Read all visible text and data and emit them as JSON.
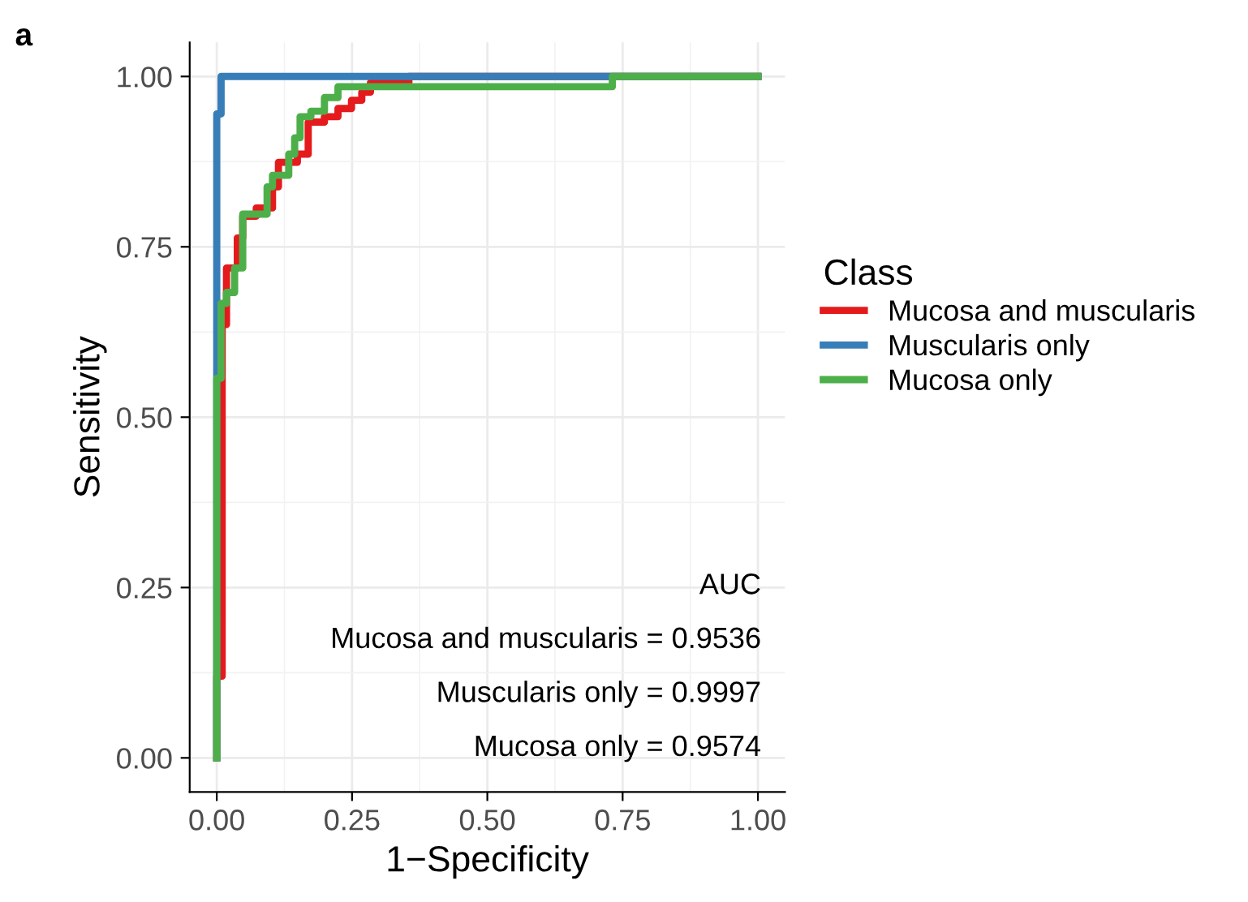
{
  "chart_data": {
    "type": "step",
    "xlabel": "1−Specificity",
    "ylabel": "Sensitivity",
    "legend_title": "Class",
    "legend": "right",
    "grid": true,
    "xlim": [
      -0.05,
      1.05
    ],
    "ylim": [
      -0.05,
      1.05
    ],
    "xticks": [
      {
        "value": 0,
        "label": "0.00"
      },
      {
        "value": 0.25,
        "label": "0.25"
      },
      {
        "value": 0.5,
        "label": "0.50"
      },
      {
        "value": 0.75,
        "label": "0.75"
      },
      {
        "value": 1,
        "label": "1.00"
      }
    ],
    "yticks": [
      {
        "value": 0,
        "label": "0.00"
      },
      {
        "value": 0.25,
        "label": "0.25"
      },
      {
        "value": 0.5,
        "label": "0.50"
      },
      {
        "value": 0.75,
        "label": "0.75"
      },
      {
        "value": 1,
        "label": "1.00"
      }
    ],
    "series": [
      {
        "name": "Mucosa and muscularis",
        "color": "#e41a1c",
        "x": [
          0,
          0,
          0.01,
          0.018,
          0.038,
          0.048,
          0.073,
          0.103,
          0.114,
          0.149,
          0.169,
          0.199,
          0.224,
          0.249,
          0.268,
          0.284,
          0.355,
          1
        ],
        "values": [
          0,
          0.12,
          0.636,
          0.719,
          0.763,
          0.795,
          0.807,
          0.838,
          0.874,
          0.886,
          0.933,
          0.941,
          0.953,
          0.965,
          0.977,
          0.991,
          1,
          1
        ]
      },
      {
        "name": "Muscularis only",
        "color": "#377eb8",
        "x": [
          0,
          0,
          0.008,
          1
        ],
        "values": [
          0,
          0.945,
          1,
          1
        ]
      },
      {
        "name": "Mucosa only",
        "color": "#4daf4a",
        "x": [
          0,
          0,
          0.008,
          0.018,
          0.033,
          0.048,
          0.093,
          0.103,
          0.133,
          0.144,
          0.154,
          0.174,
          0.199,
          0.224,
          0.731,
          1
        ],
        "values": [
          0,
          0.557,
          0.667,
          0.683,
          0.719,
          0.798,
          0.838,
          0.855,
          0.886,
          0.91,
          0.941,
          0.949,
          0.969,
          0.985,
          1,
          1
        ]
      }
    ],
    "annotations": [
      "a",
      "AUC",
      "Mucosa and muscularis = 0.9536",
      "Muscularis only = 0.9997",
      "Mucosa only = 0.9574"
    ]
  }
}
